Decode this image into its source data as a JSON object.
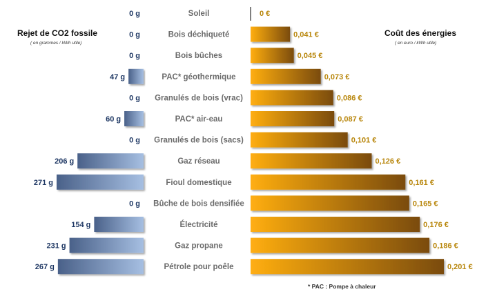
{
  "left_panel": {
    "title": "Rejet de CO2 fossile",
    "subtitle": "( en grammes / kWh utile)"
  },
  "right_panel": {
    "title": "Coût des énergies",
    "subtitle": "( en euro / kWh utile)"
  },
  "footnote": "* PAC  :  Pompe à chaleur",
  "colors": {
    "co2_dark": "#4a6189",
    "co2_light": "#a6bfe2",
    "cost_light": "#ffae12",
    "cost_dark": "#7a4b07",
    "co2_label": "#1f3864",
    "cost_label": "#b8860b",
    "category_label": "#6b6b6b"
  },
  "chart_data": [
    {
      "type": "bar",
      "orientation": "horizontal",
      "direction": "right-to-left",
      "title": "Rejet de CO2 fossile",
      "subtitle": "( en grammes / kWh utile)",
      "categories": [
        "Soleil",
        "Bois déchiqueté",
        "Bois bûches",
        "PAC* géothermique",
        "Granulés de bois (vrac)",
        "PAC* air-eau",
        "Granulés de bois (sacs)",
        "Gaz réseau",
        "Fioul domestique",
        "Bûche de bois densifiée",
        "Électricité",
        "Gaz propane",
        "Pétrole pour poêle"
      ],
      "values": [
        0,
        0,
        0,
        47,
        0,
        60,
        0,
        206,
        271,
        0,
        154,
        231,
        267
      ],
      "value_labels": [
        "0 g",
        "0 g",
        "0 g",
        "47 g",
        "0 g",
        "60 g",
        "0 g",
        "206 g",
        "271 g",
        "0 g",
        "154 g",
        "231 g",
        "267 g"
      ],
      "xlim": [
        0,
        271
      ],
      "grid": false,
      "legend": "none"
    },
    {
      "type": "bar",
      "orientation": "horizontal",
      "title": "Coût des énergies",
      "subtitle": "( en euro / kWh utile)",
      "categories": [
        "Soleil",
        "Bois déchiqueté",
        "Bois bûches",
        "PAC* géothermique",
        "Granulés de bois (vrac)",
        "PAC* air-eau",
        "Granulés de bois (sacs)",
        "Gaz réseau",
        "Fioul domestique",
        "Bûche de bois densifiée",
        "Électricité",
        "Gaz propane",
        "Pétrole pour poêle"
      ],
      "values": [
        0,
        0.041,
        0.045,
        0.073,
        0.086,
        0.087,
        0.101,
        0.126,
        0.161,
        0.165,
        0.176,
        0.186,
        0.201
      ],
      "value_labels": [
        "0 €",
        "0,041 €",
        "0,045 €",
        "0,073 €",
        "0,086 €",
        "0,087 €",
        "0,101 €",
        "0,126 €",
        "0,161 €",
        "0,165 €",
        "0,176 €",
        "0,186 €",
        "0,201 €"
      ],
      "xlim": [
        0,
        0.201
      ],
      "grid": false,
      "legend": "none"
    }
  ]
}
